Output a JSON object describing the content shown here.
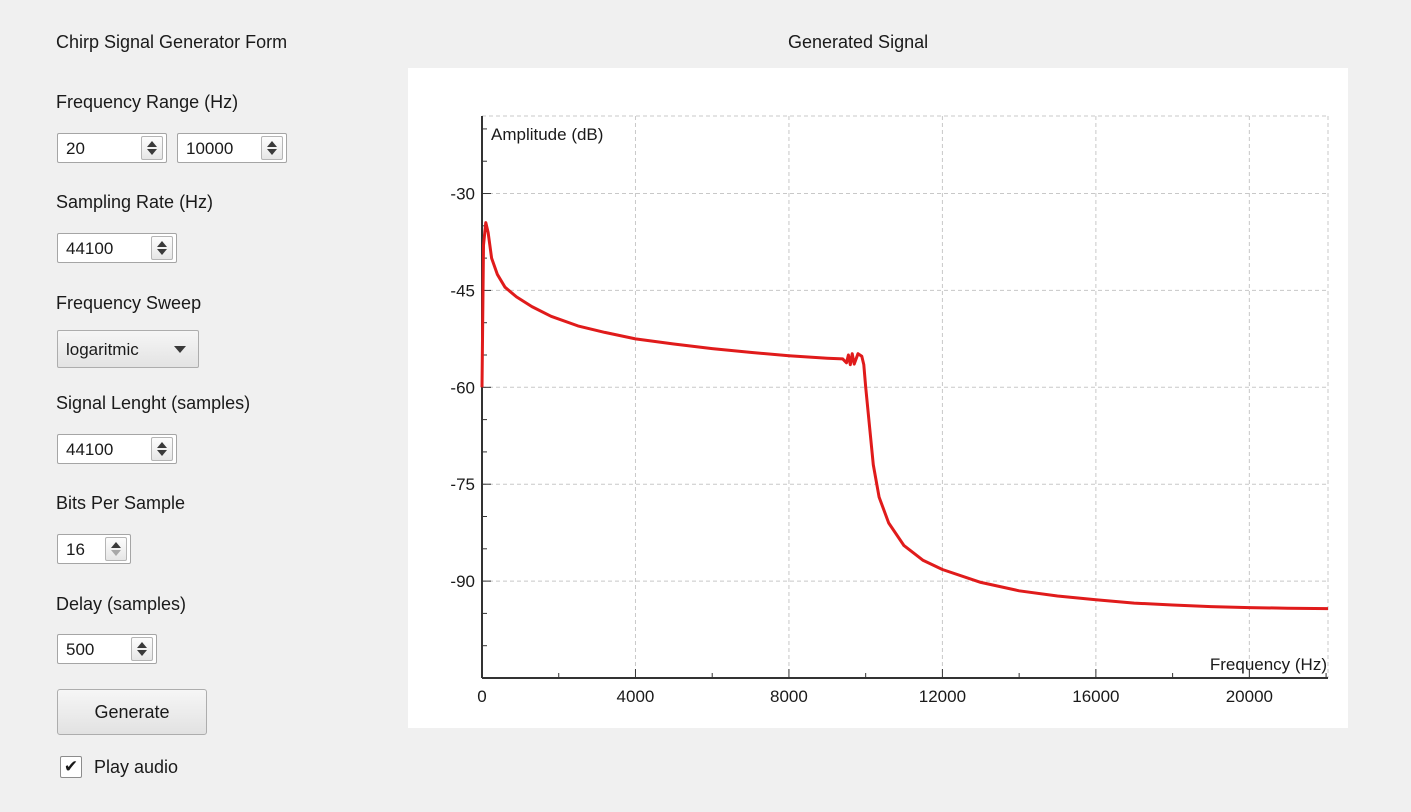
{
  "form": {
    "title": "Chirp Signal Generator Form",
    "freq_range_label": "Frequency Range (Hz)",
    "freq_min": "20",
    "freq_max": "10000",
    "sampling_label": "Sampling Rate (Hz)",
    "sampling_rate": "44100",
    "sweep_label": "Frequency Sweep",
    "sweep_value": "logaritmic",
    "length_label": "Signal Lenght (samples)",
    "length_value": "44100",
    "bits_label": "Bits Per Sample",
    "bits_value": "16",
    "delay_label": "Delay (samples)",
    "delay_value": "500",
    "generate_label": "Generate",
    "play_audio_label": "Play audio",
    "play_audio_checked": true,
    "checkmark": "✔"
  },
  "plot": {
    "title": "Generated Signal"
  },
  "chart_data": {
    "type": "line",
    "title": "Generated Signal",
    "xlabel": "Frequency (Hz)",
    "ylabel": "Amplitude (dB)",
    "xlim": [
      0,
      22050
    ],
    "ylim": [
      -105,
      -18
    ],
    "xticks": [
      0,
      4000,
      8000,
      12000,
      16000,
      20000
    ],
    "yticks": [
      -30,
      -45,
      -60,
      -75,
      -90
    ],
    "grid": true,
    "color": "#e01b1b",
    "series": [
      {
        "points": [
          [
            0,
            -60
          ],
          [
            40,
            -38
          ],
          [
            100,
            -34.5
          ],
          [
            160,
            -36
          ],
          [
            250,
            -40
          ],
          [
            400,
            -42.5
          ],
          [
            600,
            -44.5
          ],
          [
            900,
            -46
          ],
          [
            1300,
            -47.5
          ],
          [
            1800,
            -49
          ],
          [
            2500,
            -50.5
          ],
          [
            3200,
            -51.5
          ],
          [
            4000,
            -52.5
          ],
          [
            5000,
            -53.3
          ],
          [
            6000,
            -54
          ],
          [
            7000,
            -54.6
          ],
          [
            8000,
            -55.1
          ],
          [
            9000,
            -55.5
          ],
          [
            9400,
            -55.6
          ],
          [
            9500,
            -56.2
          ],
          [
            9550,
            -55
          ],
          [
            9600,
            -56.5
          ],
          [
            9650,
            -54.8
          ],
          [
            9700,
            -56.4
          ],
          [
            9800,
            -54.8
          ],
          [
            9900,
            -55.2
          ],
          [
            9950,
            -56.5
          ],
          [
            10000,
            -60
          ],
          [
            10100,
            -66
          ],
          [
            10200,
            -72
          ],
          [
            10350,
            -77
          ],
          [
            10600,
            -81
          ],
          [
            11000,
            -84.5
          ],
          [
            11500,
            -86.8
          ],
          [
            12000,
            -88.2
          ],
          [
            13000,
            -90.2
          ],
          [
            14000,
            -91.5
          ],
          [
            15000,
            -92.3
          ],
          [
            16000,
            -92.9
          ],
          [
            17000,
            -93.4
          ],
          [
            18000,
            -93.7
          ],
          [
            19000,
            -93.95
          ],
          [
            20000,
            -94.1
          ],
          [
            21000,
            -94.2
          ],
          [
            22050,
            -94.25
          ]
        ]
      }
    ]
  }
}
